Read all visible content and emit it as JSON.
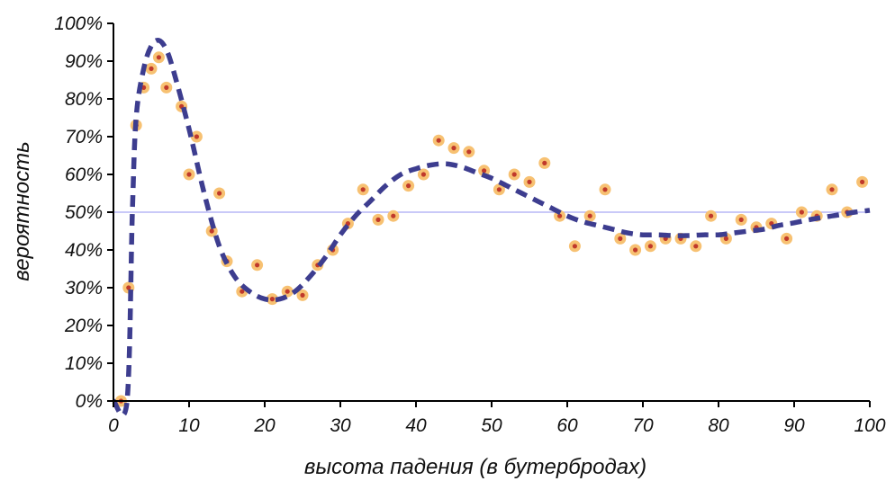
{
  "chart_data": {
    "type": "scatter",
    "title": "",
    "xlabel": "высота падения (в бутербродах)",
    "ylabel": "вероятность",
    "xlim": [
      0,
      100
    ],
    "ylim": [
      0,
      100
    ],
    "x_ticks": [
      "0",
      "10",
      "20",
      "30",
      "40",
      "50",
      "60",
      "70",
      "80",
      "90",
      "100"
    ],
    "y_ticks": [
      "0%",
      "10%",
      "20%",
      "30%",
      "40%",
      "50%",
      "60%",
      "70%",
      "80%",
      "90%",
      "100%"
    ],
    "reference_line_y": 50,
    "grid": false,
    "legend": "none",
    "series": [
      {
        "kind": "points",
        "x": [
          1,
          2,
          3,
          4,
          5,
          6,
          7,
          9,
          11,
          10,
          13,
          14,
          15,
          17,
          19,
          21,
          23,
          25,
          27,
          29,
          31,
          33,
          35,
          37,
          39,
          41,
          43,
          45,
          47,
          49,
          51,
          53,
          55,
          57,
          59,
          61,
          63,
          65,
          67,
          69,
          71,
          73,
          75,
          77,
          79,
          81,
          83,
          85,
          87,
          89,
          91,
          93,
          95,
          97,
          99
        ],
        "y": [
          0,
          30,
          73,
          83,
          88,
          91,
          83,
          78,
          70,
          60,
          45,
          55,
          37,
          29,
          36,
          27,
          29,
          28,
          36,
          40,
          47,
          56,
          48,
          49,
          57,
          60,
          69,
          67,
          66,
          61,
          56,
          60,
          58,
          63,
          49,
          41,
          49,
          56,
          43,
          40,
          41,
          43,
          43,
          41,
          49,
          43,
          48,
          46,
          47,
          43,
          50,
          49,
          56,
          50,
          58
        ]
      },
      {
        "kind": "dashed-curve",
        "x": [
          0,
          1.8,
          2.5,
          3,
          4,
          5,
          6,
          7,
          8,
          10,
          12,
          14,
          16,
          18,
          20,
          22,
          24,
          26,
          28,
          30,
          32,
          34,
          36,
          38,
          40,
          42,
          44,
          46,
          48,
          50,
          52,
          54,
          56,
          58,
          60,
          62,
          64,
          66,
          68,
          70,
          72,
          74,
          76,
          78,
          80,
          82,
          84,
          86,
          88,
          90,
          92,
          94,
          96,
          98,
          100
        ],
        "y": [
          0,
          0,
          50,
          75,
          88,
          94,
          95.5,
          93,
          87,
          72,
          55,
          41,
          33,
          29,
          27,
          27,
          29,
          33,
          38,
          44,
          49,
          53,
          57,
          60,
          61.5,
          62.5,
          62.8,
          62,
          60.5,
          59,
          57,
          55,
          53,
          51,
          49,
          47.5,
          46.5,
          45.5,
          44.5,
          44,
          44,
          43.8,
          43.8,
          44,
          44,
          44.5,
          45,
          45.5,
          46.5,
          47.2,
          48,
          48.7,
          49.3,
          50,
          50.5
        ]
      }
    ],
    "colors": {
      "point_fill": "#c0392b",
      "point_ring": "#f7c172",
      "curve": "#3d3d8f",
      "reference_line": "#a9a9f3",
      "axis": "#000000"
    }
  }
}
